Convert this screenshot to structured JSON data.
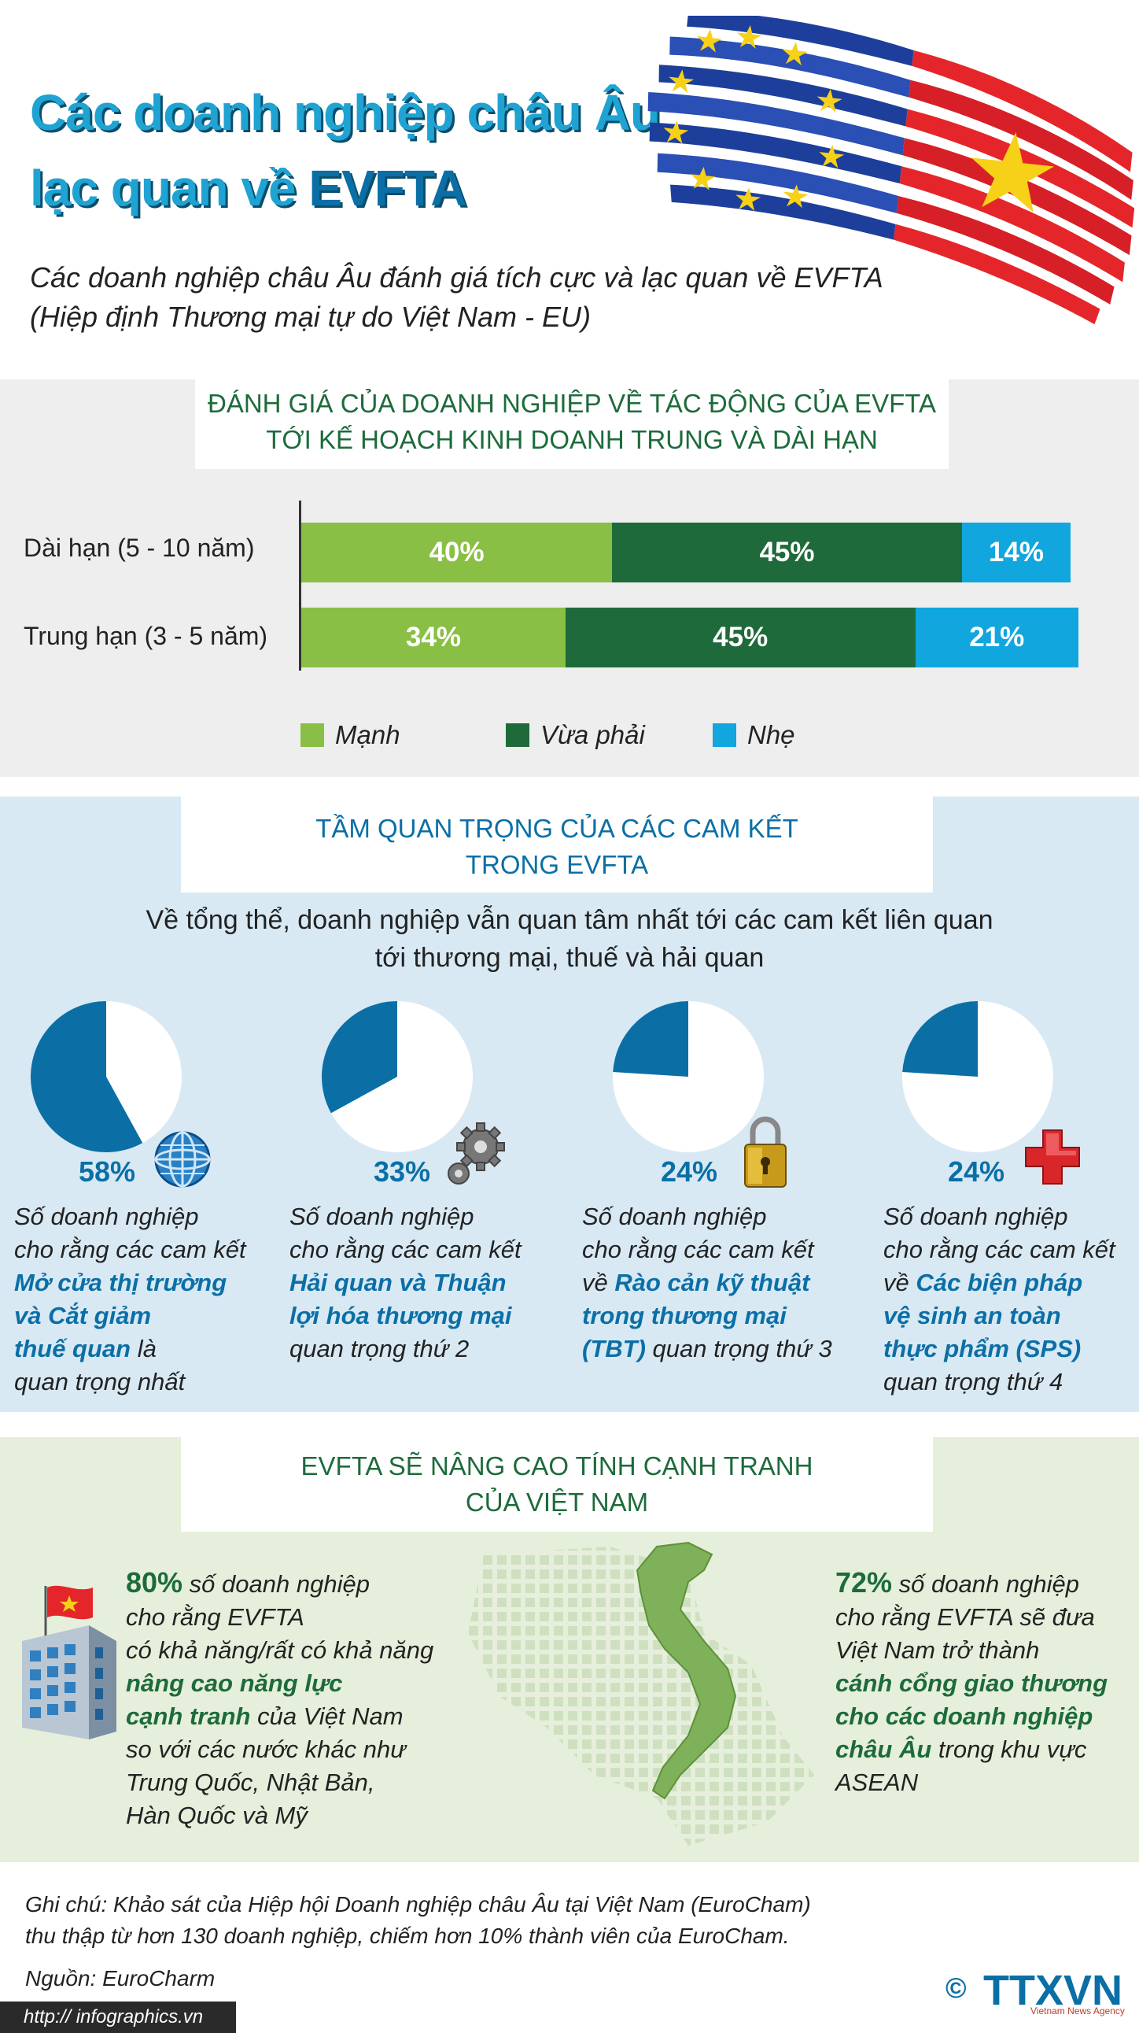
{
  "header": {
    "title_line1": "Các doanh nghiệp châu Âu",
    "title_line2_prefix": "lạc quan về ",
    "title_line2_strong": "EVFTA",
    "subtitle_line1": "Các doanh nghiệp châu Âu đánh giá tích cực và lạc quan về EVFTA",
    "subtitle_line2": "(Hiệp định Thương mại tự do Việt Nam - EU)"
  },
  "section1": {
    "heading_line1": "ĐÁNH GIÁ CỦA DOANH NGHIỆP VỀ TÁC ĐỘNG CỦA EVFTA",
    "heading_line2": "TỚI KẾ HOẠCH KINH DOANH TRUNG VÀ DÀI HẠN"
  },
  "chart_data": {
    "type": "bar",
    "orientation": "horizontal",
    "stacked": true,
    "categories": [
      "Dài hạn (5 - 10 năm)",
      "Trung hạn (3 - 5 năm)"
    ],
    "series": [
      {
        "name": "Mạnh",
        "values": [
          40,
          34
        ],
        "labels": [
          "40%",
          "34%"
        ],
        "color": "#8abf45"
      },
      {
        "name": "Vừa phải",
        "values": [
          45,
          45
        ],
        "labels": [
          "45%",
          "45%"
        ],
        "color": "#1f6a3a"
      },
      {
        "name": "Nhẹ",
        "values": [
          14,
          21
        ],
        "labels": [
          "14%",
          "21%"
        ],
        "color": "#11a6de"
      }
    ],
    "legend_placement": "bottom"
  },
  "section2": {
    "heading_line1": "TẦM QUAN TRỌNG CỦA CÁC CAM KẾT",
    "heading_line2": "TRONG EVFTA",
    "intro_line1": "Về tổng thể, doanh nghiệp vẫn quan tâm nhất tới các cam kết liên quan",
    "intro_line2": "tới thương mại, thuế và hải quan",
    "pie_color": "#0b6fa6",
    "items": [
      {
        "value": 58,
        "label": "58%",
        "icon": "globe-icon",
        "l1": "Số doanh nghiệp",
        "l2": "cho rằng các cam kết",
        "h1": "Mở cửa thị trường",
        "h2": "và Cắt giảm",
        "h3": "thuế quan",
        "t3": " là",
        "l5": "quan trọng nhất"
      },
      {
        "value": 33,
        "label": "33%",
        "icon": "gears-icon",
        "l1": "Số doanh nghiệp",
        "l2": "cho rằng các cam kết",
        "h1": "Hải quan và Thuận",
        "h2": "lợi hóa thương mại",
        "l5": "quan trọng thứ 2"
      },
      {
        "value": 24,
        "label": "24%",
        "icon": "padlock-icon",
        "l1": "Số doanh nghiệp",
        "l2": "cho rằng các cam kết",
        "p3": "về ",
        "h1": "Rào cản kỹ thuật",
        "h2": "trong thương mại",
        "h3": "(TBT)",
        "t3": " quan trọng thứ 3"
      },
      {
        "value": 24,
        "label": "24%",
        "icon": "medical-cross-icon",
        "l1": "Số doanh nghiệp",
        "l2": "cho rằng các cam kết",
        "p3": "về ",
        "h1": "Các biện pháp",
        "h2": "vệ sinh an toàn",
        "h3": "thực phẩm (SPS)",
        "l5": "quan trọng thứ 4"
      }
    ]
  },
  "section3": {
    "heading_line1": "EVFTA SẼ NÂNG CAO TÍNH CẠNH TRANH",
    "heading_line2": "CỦA VIỆT NAM",
    "left": {
      "value": 80,
      "pct": "80%",
      "r1": " số doanh nghiệp",
      "r2": "cho rằng EVFTA",
      "r3": "có khả năng/rất có khả năng",
      "r4": "nâng cao năng lực",
      "r5a": "cạnh tranh",
      "r5b": " của Việt Nam",
      "r6": "so với các nước khác như",
      "r7": "Trung Quốc, Nhật Bản,",
      "r8": "Hàn Quốc và Mỹ"
    },
    "right": {
      "value": 72,
      "pct": "72%",
      "r1": " số doanh nghiệp",
      "r2": "cho rằng EVFTA sẽ đưa",
      "r3": "Việt Nam trở thành",
      "r4": "cánh cổng giao thương",
      "r5": "cho các doanh nghiệp",
      "r6a": "châu Âu",
      "r6b": " trong khu vực",
      "r7": "ASEAN"
    }
  },
  "footer": {
    "note_line1": "Ghi chú: Khảo sát của Hiệp hội Doanh nghiệp châu Âu tại Việt Nam (EuroCham)",
    "note_line2": "thu thập từ hơn 130 doanh nghiệp, chiếm hơn 10% thành viên của EuroCham.",
    "source": "Nguồn: EuroCharm",
    "url": "http:// infographics.vn",
    "copyright": "©",
    "brand": "TTXVN",
    "brand_sub": "Vietnam News Agency"
  }
}
